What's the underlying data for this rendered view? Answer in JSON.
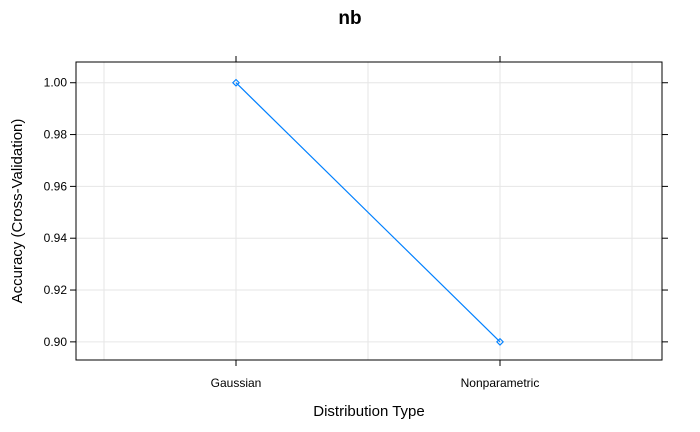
{
  "chart_data": {
    "type": "line",
    "title": "nb",
    "xlabel": "Distribution Type",
    "ylabel": "Accuracy (Cross-Validation)",
    "categories": [
      "Gaussian",
      "Nonparametric"
    ],
    "series": [
      {
        "values": [
          1.0,
          0.9
        ],
        "color": "#0080ff",
        "marker": "open-diamond"
      }
    ],
    "ylim": [
      0.893,
      1.008
    ],
    "yticks": [
      "0.90",
      "0.92",
      "0.94",
      "0.96",
      "0.98",
      "1.00"
    ],
    "grid": true
  }
}
